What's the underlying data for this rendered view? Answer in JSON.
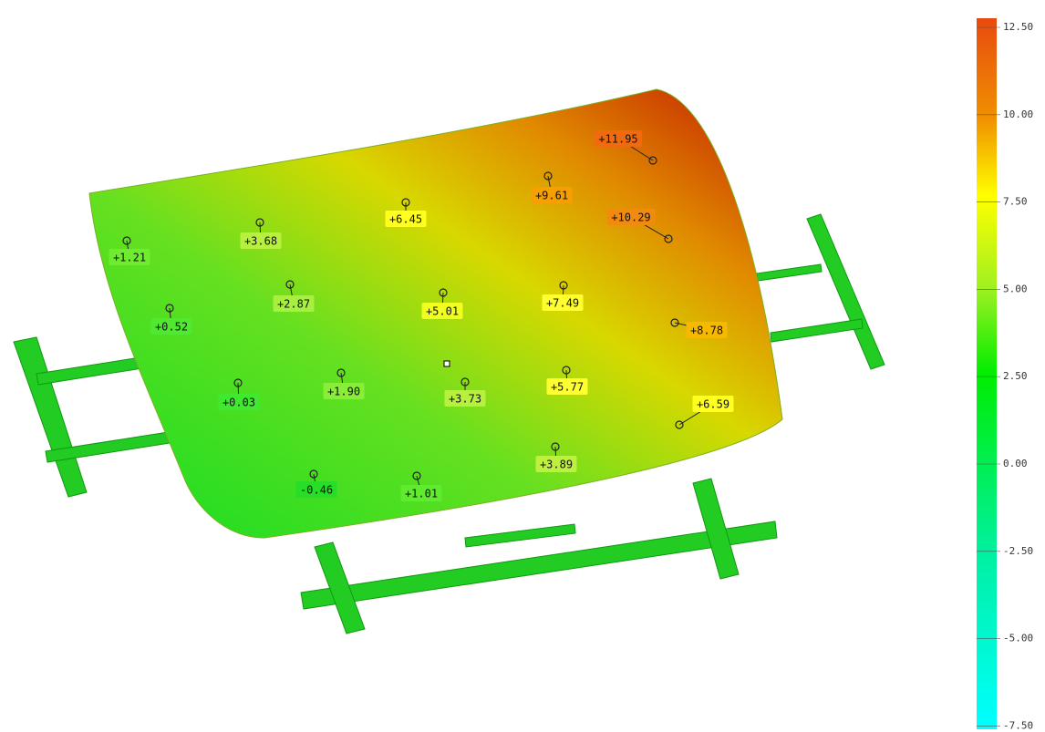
{
  "annotations": [
    "+11.95",
    "+9.61",
    "+10.29",
    "+6.45",
    "+3.68",
    "+1.21",
    "+2.87",
    "+5.01",
    "+7.49",
    "+0.52",
    "+8.78",
    "+0.03",
    "+1.90",
    "+3.73",
    "+5.77",
    "+6.59",
    "+3.89",
    "-0.46",
    "+1.01"
  ],
  "colorbar": {
    "ticks": [
      "12.50",
      "10.00",
      "7.50",
      "5.00",
      "2.50",
      "0.00",
      "-2.50",
      "-5.00",
      "-7.50"
    ]
  }
}
